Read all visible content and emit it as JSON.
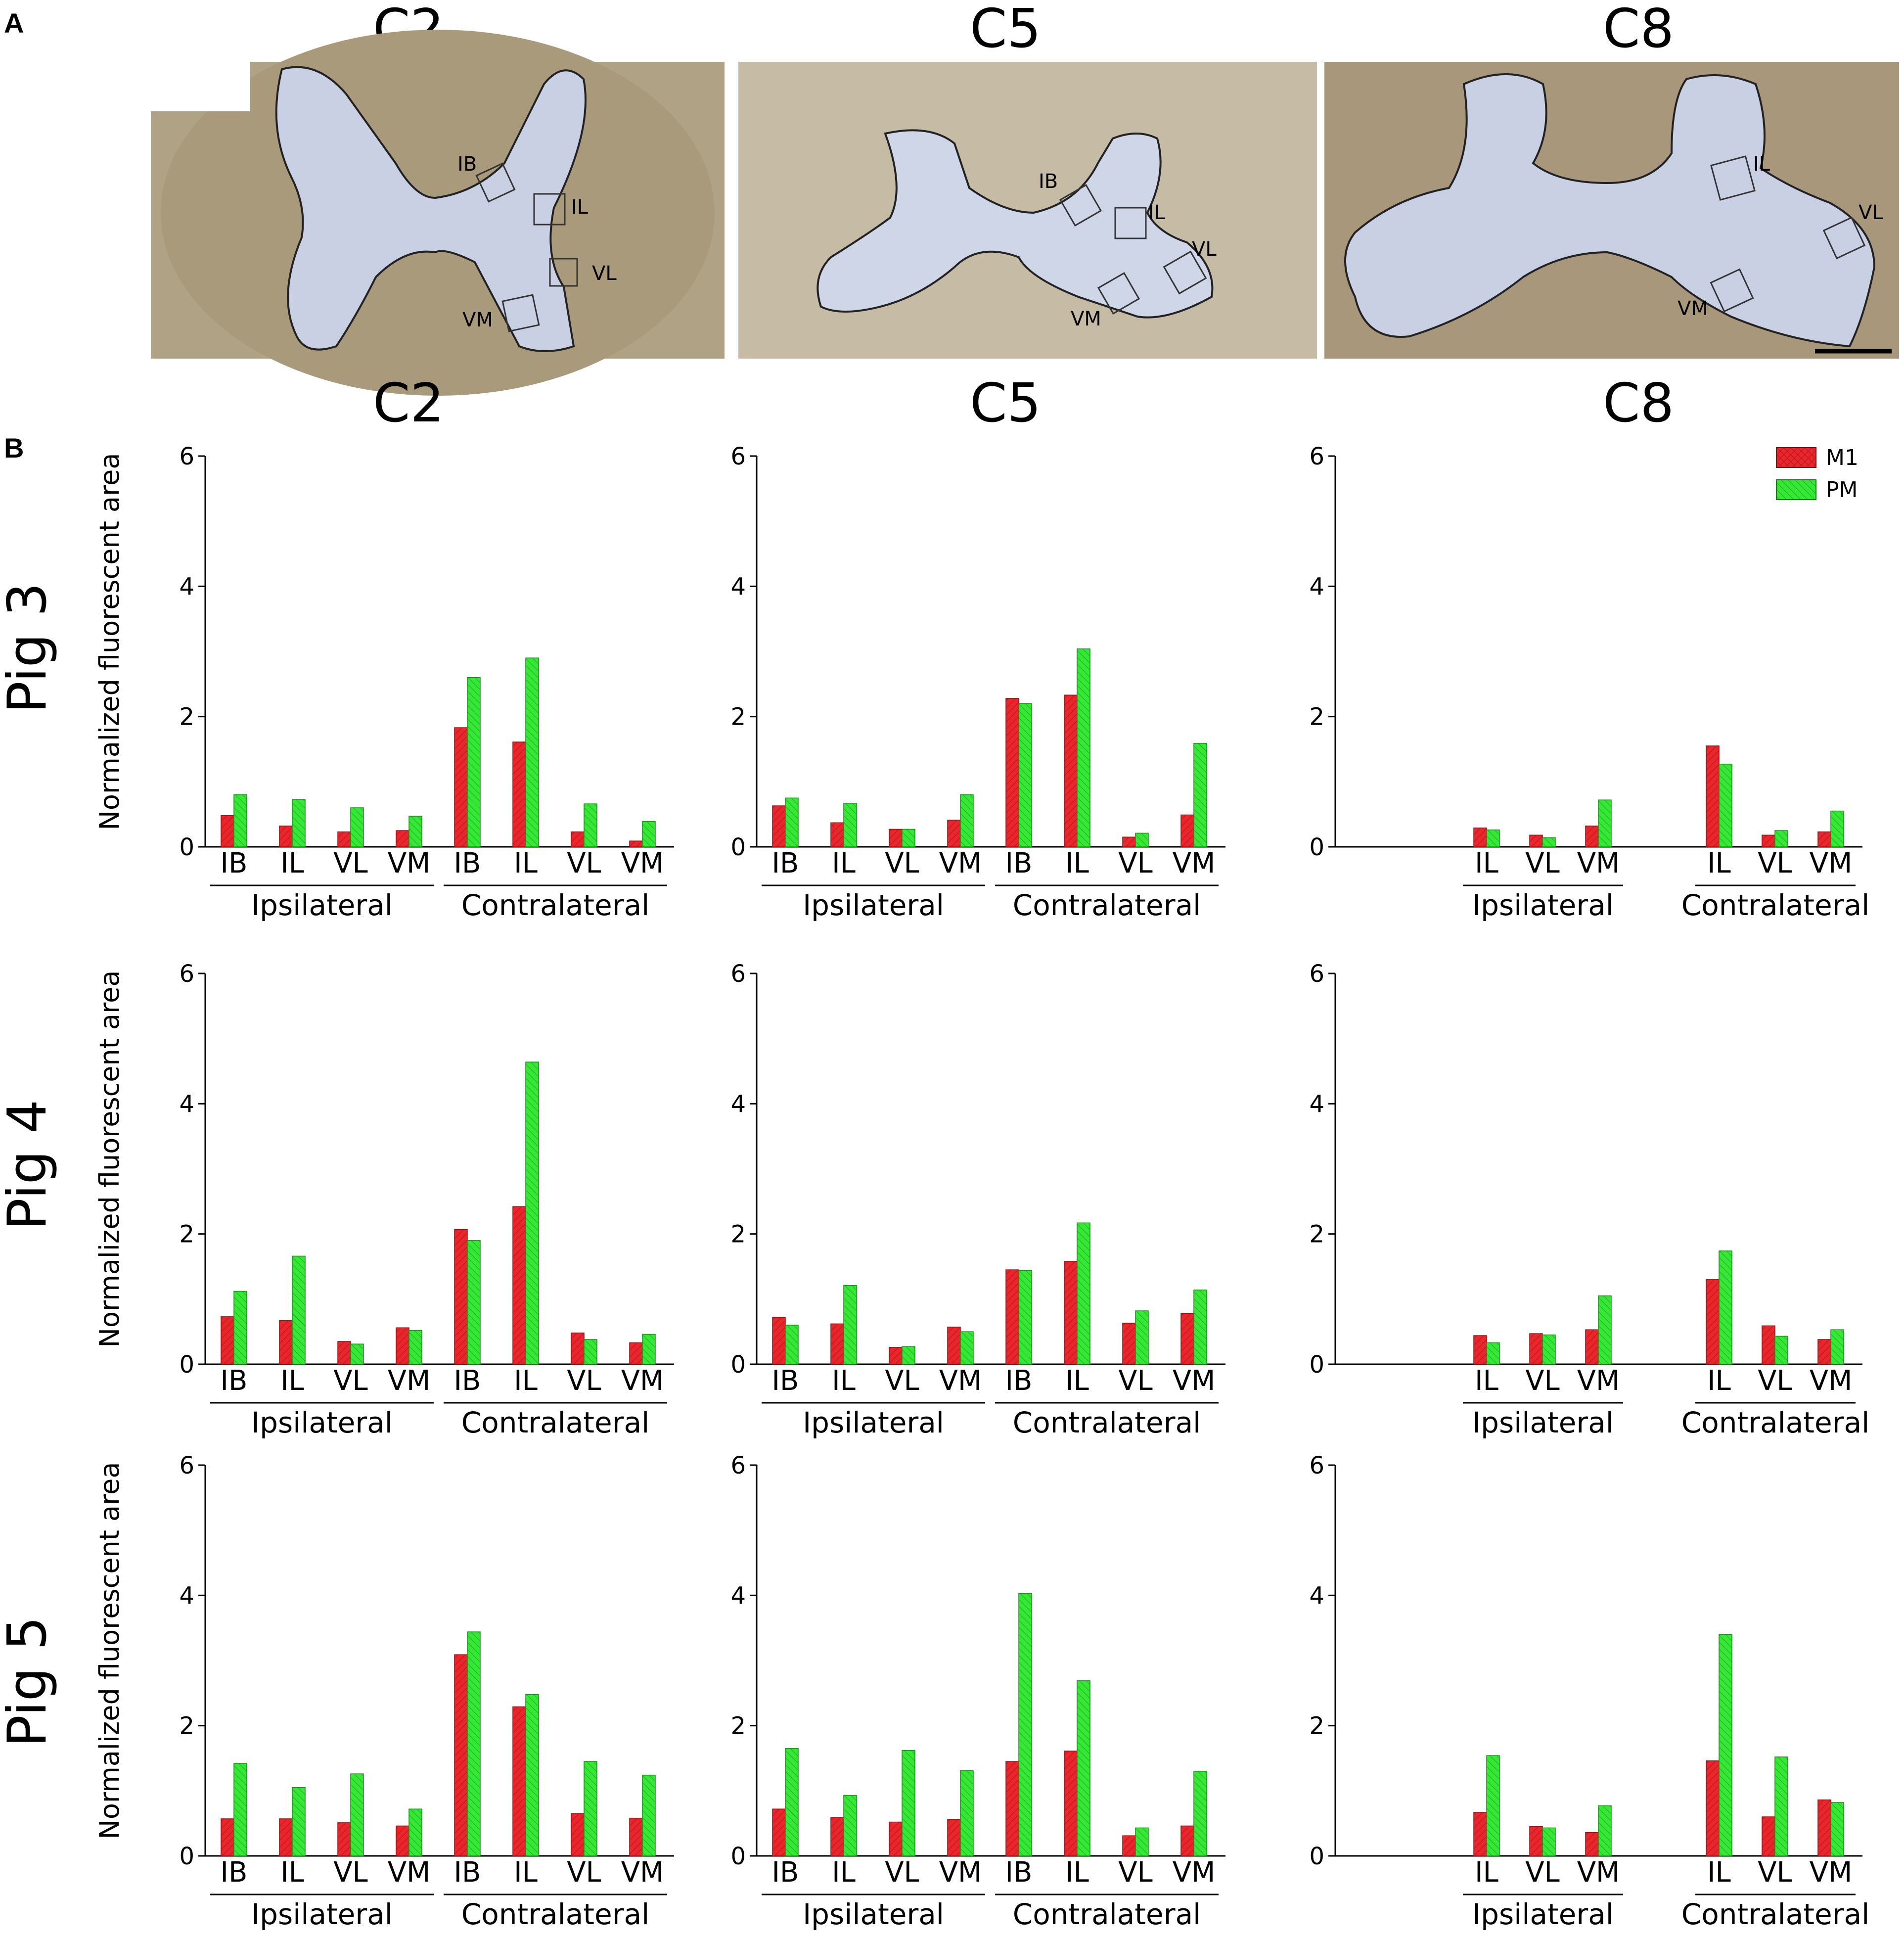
{
  "panel_a": {
    "letter": "A",
    "sections": [
      {
        "title": "C2",
        "boxes": [
          "IB",
          "IL",
          "VL",
          "VM"
        ]
      },
      {
        "title": "C5",
        "boxes": [
          "IB",
          "IL",
          "VL",
          "VM"
        ]
      },
      {
        "title": "C8",
        "boxes": [
          "IL",
          "VL",
          "VM"
        ]
      }
    ]
  },
  "panel_b": {
    "letter": "B",
    "column_titles": [
      "C2",
      "C5",
      "C8"
    ],
    "row_titles": [
      "Pig 3",
      "Pig 4",
      "Pig 5"
    ],
    "legend": [
      "M1",
      "PM"
    ]
  },
  "colors": {
    "m1": "#e8262b",
    "pm": "#36e836",
    "outline": "#222222",
    "tissue": "#b5a788",
    "grey": "#c9d0e4"
  },
  "chart_data": [
    {
      "type": "bar",
      "pig": "Pig 3",
      "level": "C2",
      "ylabel": "Normalized fluorescent area",
      "ylim": [
        0,
        6
      ],
      "yticks": [
        "0",
        "2",
        "4",
        "6"
      ],
      "categories": [
        "IB",
        "IL",
        "VL",
        "VM",
        "IB",
        "IL",
        "VL",
        "VM"
      ],
      "groups": [
        "Ipsilateral",
        "Contralateral"
      ],
      "series": [
        {
          "name": "M1",
          "values": [
            0.48,
            0.32,
            0.23,
            0.25,
            1.83,
            1.61,
            0.23,
            0.09
          ]
        },
        {
          "name": "PM",
          "values": [
            0.8,
            0.73,
            0.6,
            0.47,
            2.6,
            2.9,
            0.66,
            0.39
          ]
        }
      ]
    },
    {
      "type": "bar",
      "pig": "Pig 3",
      "level": "C5",
      "ylabel": "",
      "ylim": [
        0,
        6
      ],
      "yticks": [
        "0",
        "2",
        "4",
        "6"
      ],
      "categories": [
        "IB",
        "IL",
        "VL",
        "VM",
        "IB",
        "IL",
        "VL",
        "VM"
      ],
      "groups": [
        "Ipsilateral",
        "Contralateral"
      ],
      "series": [
        {
          "name": "M1",
          "values": [
            0.63,
            0.37,
            0.27,
            0.41,
            2.28,
            2.33,
            0.15,
            0.49
          ]
        },
        {
          "name": "PM",
          "values": [
            0.75,
            0.67,
            0.27,
            0.8,
            2.2,
            3.04,
            0.21,
            1.59
          ]
        }
      ]
    },
    {
      "type": "bar",
      "pig": "Pig 3",
      "level": "C8",
      "ylabel": "",
      "ylim": [
        0,
        6
      ],
      "yticks": [
        "0",
        "2",
        "4",
        "6"
      ],
      "categories": [
        "IL",
        "VL",
        "VM",
        "IL",
        "VL",
        "VM"
      ],
      "groups": [
        "Ipsilateral",
        "Contralateral"
      ],
      "series": [
        {
          "name": "M1",
          "values": [
            0.29,
            0.18,
            0.32,
            1.55,
            0.18,
            0.23
          ]
        },
        {
          "name": "PM",
          "values": [
            0.26,
            0.14,
            0.72,
            1.27,
            0.25,
            0.55
          ]
        }
      ]
    },
    {
      "type": "bar",
      "pig": "Pig 4",
      "level": "C2",
      "ylabel": "Normalized fluorescent area",
      "ylim": [
        0,
        6
      ],
      "yticks": [
        "0",
        "2",
        "4",
        "6"
      ],
      "categories": [
        "IB",
        "IL",
        "VL",
        "VM",
        "IB",
        "IL",
        "VL",
        "VM"
      ],
      "groups": [
        "Ipsilateral",
        "Contralateral"
      ],
      "series": [
        {
          "name": "M1",
          "values": [
            0.73,
            0.67,
            0.35,
            0.56,
            2.07,
            2.42,
            0.48,
            0.33
          ]
        },
        {
          "name": "PM",
          "values": [
            1.12,
            1.66,
            0.31,
            0.52,
            1.9,
            4.64,
            0.38,
            0.46
          ]
        }
      ]
    },
    {
      "type": "bar",
      "pig": "Pig 4",
      "level": "C5",
      "ylabel": "",
      "ylim": [
        0,
        6
      ],
      "yticks": [
        "0",
        "2",
        "4",
        "6"
      ],
      "categories": [
        "IB",
        "IL",
        "VL",
        "VM",
        "IB",
        "IL",
        "VL",
        "VM"
      ],
      "groups": [
        "Ipsilateral",
        "Contralateral"
      ],
      "series": [
        {
          "name": "M1",
          "values": [
            0.72,
            0.62,
            0.26,
            0.57,
            1.45,
            1.58,
            0.63,
            0.78
          ]
        },
        {
          "name": "PM",
          "values": [
            0.6,
            1.21,
            0.27,
            0.5,
            1.44,
            2.17,
            0.82,
            1.14
          ]
        }
      ]
    },
    {
      "type": "bar",
      "pig": "Pig 4",
      "level": "C8",
      "ylabel": "",
      "ylim": [
        0,
        6
      ],
      "yticks": [
        "0",
        "2",
        "4",
        "6"
      ],
      "categories": [
        "IL",
        "VL",
        "VM",
        "IL",
        "VL",
        "VM"
      ],
      "groups": [
        "Ipsilateral",
        "Contralateral"
      ],
      "series": [
        {
          "name": "M1",
          "values": [
            0.44,
            0.47,
            0.53,
            1.3,
            0.59,
            0.38
          ]
        },
        {
          "name": "PM",
          "values": [
            0.33,
            0.45,
            1.05,
            1.74,
            0.43,
            0.53
          ]
        }
      ]
    },
    {
      "type": "bar",
      "pig": "Pig 5",
      "level": "C2",
      "ylabel": "Normalized fluorescent area",
      "ylim": [
        0,
        6
      ],
      "yticks": [
        "0",
        "2",
        "4",
        "6"
      ],
      "categories": [
        "IB",
        "IL",
        "VL",
        "VM",
        "IB",
        "IL",
        "VL",
        "VM"
      ],
      "groups": [
        "Ipsilateral",
        "Contralateral"
      ],
      "series": [
        {
          "name": "M1",
          "values": [
            0.57,
            0.57,
            0.51,
            0.46,
            3.09,
            2.29,
            0.65,
            0.58
          ]
        },
        {
          "name": "PM",
          "values": [
            1.42,
            1.05,
            1.26,
            0.72,
            3.44,
            2.48,
            1.45,
            1.24
          ]
        }
      ]
    },
    {
      "type": "bar",
      "pig": "Pig 5",
      "level": "C5",
      "ylabel": "",
      "ylim": [
        0,
        6
      ],
      "yticks": [
        "0",
        "2",
        "4",
        "6"
      ],
      "categories": [
        "IB",
        "IL",
        "VL",
        "VM",
        "IB",
        "IL",
        "VL",
        "VM"
      ],
      "groups": [
        "Ipsilateral",
        "Contralateral"
      ],
      "series": [
        {
          "name": "M1",
          "values": [
            0.72,
            0.59,
            0.52,
            0.56,
            1.45,
            1.61,
            0.31,
            0.46
          ]
        },
        {
          "name": "PM",
          "values": [
            1.65,
            0.93,
            1.62,
            1.31,
            4.03,
            2.69,
            0.43,
            1.3
          ]
        }
      ]
    },
    {
      "type": "bar",
      "pig": "Pig 5",
      "level": "C8",
      "ylabel": "",
      "ylim": [
        0,
        6
      ],
      "yticks": [
        "0",
        "2",
        "4",
        "6"
      ],
      "categories": [
        "IL",
        "VL",
        "VM",
        "IL",
        "VL",
        "VM"
      ],
      "groups": [
        "Ipsilateral",
        "Contralateral"
      ],
      "series": [
        {
          "name": "M1",
          "values": [
            0.67,
            0.45,
            0.36,
            1.46,
            0.6,
            0.86
          ]
        },
        {
          "name": "PM",
          "values": [
            1.54,
            0.43,
            0.77,
            3.4,
            1.52,
            0.82
          ]
        }
      ]
    }
  ]
}
